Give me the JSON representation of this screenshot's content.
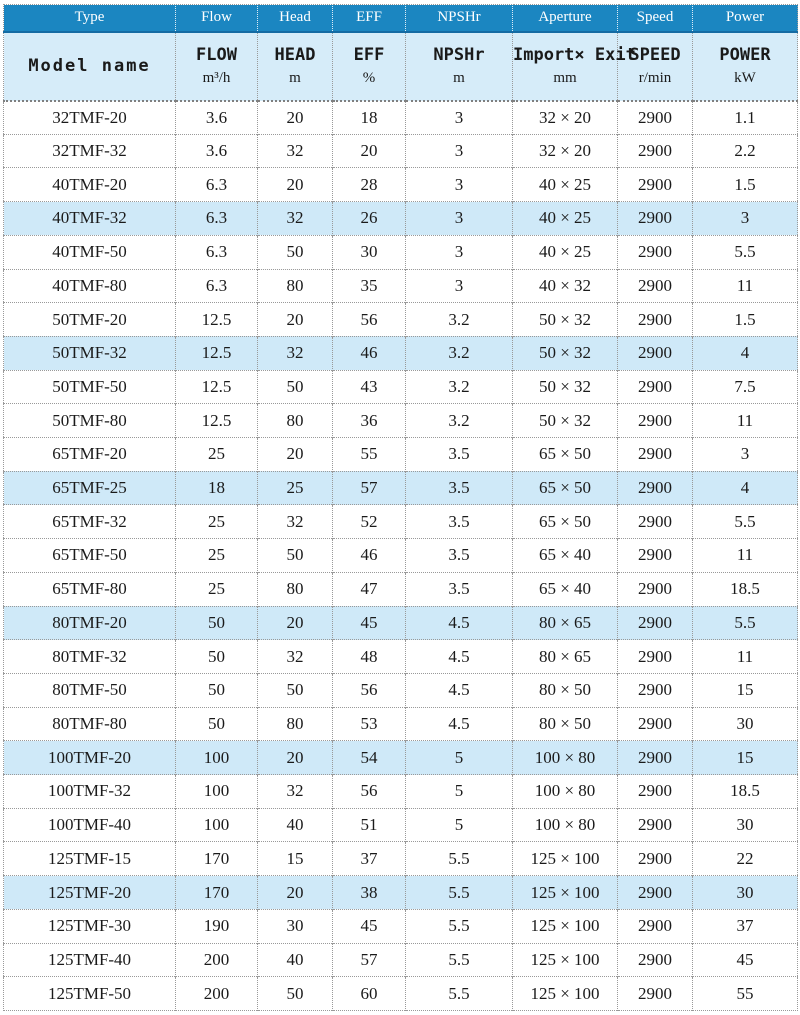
{
  "colors": {
    "header_blue": "#1b86c1",
    "header_light": "#d6ecf9",
    "row_highlight": "#cfe9f8",
    "grid": "#999999"
  },
  "table": {
    "header_top": [
      "Type",
      "Flow",
      "Head",
      "EFF",
      "NPSHr",
      "Aperture",
      "Speed",
      "Power"
    ],
    "header_main": {
      "model_label": "Model name",
      "cols": [
        {
          "label": "FLOW",
          "unit": "m³/h"
        },
        {
          "label": "HEAD",
          "unit": "m"
        },
        {
          "label": "EFF",
          "unit": "%"
        },
        {
          "label": "NPSHr",
          "unit": "m"
        },
        {
          "label": "Import× Exit",
          "unit": "mm"
        },
        {
          "label": "SPEED",
          "unit": "r/min"
        },
        {
          "label": "POWER",
          "unit": "kW"
        }
      ]
    },
    "rows": [
      {
        "model": "32TMF-20",
        "flow": "3.6",
        "head": "20",
        "eff": "18",
        "npshr": "3",
        "aperture": "32 × 20",
        "speed": "2900",
        "power": "1.1",
        "highlight": false
      },
      {
        "model": "32TMF-32",
        "flow": "3.6",
        "head": "32",
        "eff": "20",
        "npshr": "3",
        "aperture": "32 × 20",
        "speed": "2900",
        "power": "2.2",
        "highlight": false
      },
      {
        "model": "40TMF-20",
        "flow": "6.3",
        "head": "20",
        "eff": "28",
        "npshr": "3",
        "aperture": "40 × 25",
        "speed": "2900",
        "power": "1.5",
        "highlight": false
      },
      {
        "model": "40TMF-32",
        "flow": "6.3",
        "head": "32",
        "eff": "26",
        "npshr": "3",
        "aperture": "40 × 25",
        "speed": "2900",
        "power": "3",
        "highlight": true
      },
      {
        "model": "40TMF-50",
        "flow": "6.3",
        "head": "50",
        "eff": "30",
        "npshr": "3",
        "aperture": "40 × 25",
        "speed": "2900",
        "power": "5.5",
        "highlight": false
      },
      {
        "model": "40TMF-80",
        "flow": "6.3",
        "head": "80",
        "eff": "35",
        "npshr": "3",
        "aperture": "40 × 32",
        "speed": "2900",
        "power": "11",
        "highlight": false
      },
      {
        "model": "50TMF-20",
        "flow": "12.5",
        "head": "20",
        "eff": "56",
        "npshr": "3.2",
        "aperture": "50 × 32",
        "speed": "2900",
        "power": "1.5",
        "highlight": false
      },
      {
        "model": "50TMF-32",
        "flow": "12.5",
        "head": "32",
        "eff": "46",
        "npshr": "3.2",
        "aperture": "50 × 32",
        "speed": "2900",
        "power": "4",
        "highlight": true
      },
      {
        "model": "50TMF-50",
        "flow": "12.5",
        "head": "50",
        "eff": "43",
        "npshr": "3.2",
        "aperture": "50 × 32",
        "speed": "2900",
        "power": "7.5",
        "highlight": false
      },
      {
        "model": "50TMF-80",
        "flow": "12.5",
        "head": "80",
        "eff": "36",
        "npshr": "3.2",
        "aperture": "50 × 32",
        "speed": "2900",
        "power": "11",
        "highlight": false
      },
      {
        "model": "65TMF-20",
        "flow": "25",
        "head": "20",
        "eff": "55",
        "npshr": "3.5",
        "aperture": "65 × 50",
        "speed": "2900",
        "power": "3",
        "highlight": false
      },
      {
        "model": "65TMF-25",
        "flow": "18",
        "head": "25",
        "eff": "57",
        "npshr": "3.5",
        "aperture": "65 × 50",
        "speed": "2900",
        "power": "4",
        "highlight": true
      },
      {
        "model": "65TMF-32",
        "flow": "25",
        "head": "32",
        "eff": "52",
        "npshr": "3.5",
        "aperture": "65 × 50",
        "speed": "2900",
        "power": "5.5",
        "highlight": false
      },
      {
        "model": "65TMF-50",
        "flow": "25",
        "head": "50",
        "eff": "46",
        "npshr": "3.5",
        "aperture": "65 × 40",
        "speed": "2900",
        "power": "11",
        "highlight": false
      },
      {
        "model": "65TMF-80",
        "flow": "25",
        "head": "80",
        "eff": "47",
        "npshr": "3.5",
        "aperture": "65 × 40",
        "speed": "2900",
        "power": "18.5",
        "highlight": false
      },
      {
        "model": "80TMF-20",
        "flow": "50",
        "head": "20",
        "eff": "45",
        "npshr": "4.5",
        "aperture": "80 × 65",
        "speed": "2900",
        "power": "5.5",
        "highlight": true
      },
      {
        "model": "80TMF-32",
        "flow": "50",
        "head": "32",
        "eff": "48",
        "npshr": "4.5",
        "aperture": "80 × 65",
        "speed": "2900",
        "power": "11",
        "highlight": false
      },
      {
        "model": "80TMF-50",
        "flow": "50",
        "head": "50",
        "eff": "56",
        "npshr": "4.5",
        "aperture": "80 × 50",
        "speed": "2900",
        "power": "15",
        "highlight": false
      },
      {
        "model": "80TMF-80",
        "flow": "50",
        "head": "80",
        "eff": "53",
        "npshr": "4.5",
        "aperture": "80 × 50",
        "speed": "2900",
        "power": "30",
        "highlight": false
      },
      {
        "model": "100TMF-20",
        "flow": "100",
        "head": "20",
        "eff": "54",
        "npshr": "5",
        "aperture": "100 × 80",
        "speed": "2900",
        "power": "15",
        "highlight": true
      },
      {
        "model": "100TMF-32",
        "flow": "100",
        "head": "32",
        "eff": "56",
        "npshr": "5",
        "aperture": "100 × 80",
        "speed": "2900",
        "power": "18.5",
        "highlight": false
      },
      {
        "model": "100TMF-40",
        "flow": "100",
        "head": "40",
        "eff": "51",
        "npshr": "5",
        "aperture": "100 × 80",
        "speed": "2900",
        "power": "30",
        "highlight": false
      },
      {
        "model": "125TMF-15",
        "flow": "170",
        "head": "15",
        "eff": "37",
        "npshr": "5.5",
        "aperture": "125 × 100",
        "speed": "2900",
        "power": "22",
        "highlight": false
      },
      {
        "model": "125TMF-20",
        "flow": "170",
        "head": "20",
        "eff": "38",
        "npshr": "5.5",
        "aperture": "125 × 100",
        "speed": "2900",
        "power": "30",
        "highlight": true
      },
      {
        "model": "125TMF-30",
        "flow": "190",
        "head": "30",
        "eff": "45",
        "npshr": "5.5",
        "aperture": "125 × 100",
        "speed": "2900",
        "power": "37",
        "highlight": false
      },
      {
        "model": "125TMF-40",
        "flow": "200",
        "head": "40",
        "eff": "57",
        "npshr": "5.5",
        "aperture": "125 × 100",
        "speed": "2900",
        "power": "45",
        "highlight": false
      },
      {
        "model": "125TMF-50",
        "flow": "200",
        "head": "50",
        "eff": "60",
        "npshr": "5.5",
        "aperture": "125 × 100",
        "speed": "2900",
        "power": "55",
        "highlight": false
      }
    ]
  }
}
